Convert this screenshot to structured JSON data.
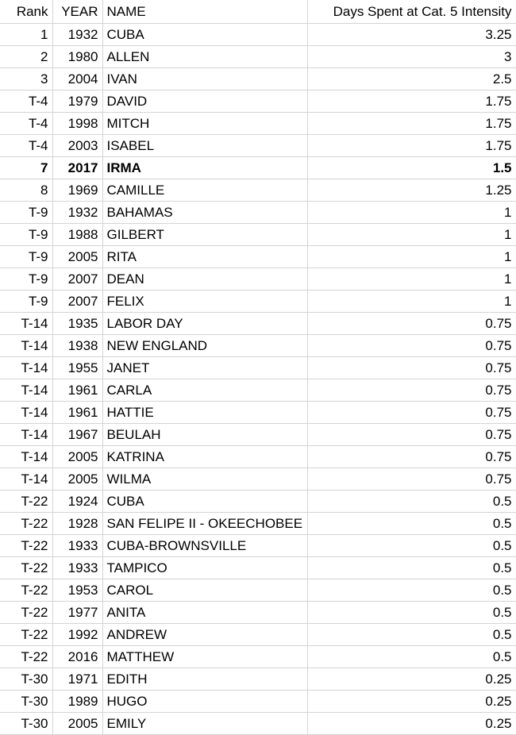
{
  "headers": {
    "rank": "Rank",
    "year": "YEAR",
    "name": "NAME",
    "days": "Days Spent at Cat. 5 Intensity"
  },
  "rows": [
    {
      "rank": "1",
      "year": "1932",
      "name": "CUBA",
      "days": "3.25"
    },
    {
      "rank": "2",
      "year": "1980",
      "name": "ALLEN",
      "days": "3"
    },
    {
      "rank": "3",
      "year": "2004",
      "name": "IVAN",
      "days": "2.5"
    },
    {
      "rank": "T-4",
      "year": "1979",
      "name": "DAVID",
      "days": "1.75"
    },
    {
      "rank": "T-4",
      "year": "1998",
      "name": "MITCH",
      "days": "1.75"
    },
    {
      "rank": "T-4",
      "year": "2003",
      "name": "ISABEL",
      "days": "1.75"
    },
    {
      "rank": "7",
      "year": "2017",
      "name": "IRMA",
      "days": "1.5",
      "bold": true
    },
    {
      "rank": "8",
      "year": "1969",
      "name": "CAMILLE",
      "days": "1.25"
    },
    {
      "rank": "T-9",
      "year": "1932",
      "name": "BAHAMAS",
      "days": "1"
    },
    {
      "rank": "T-9",
      "year": "1988",
      "name": "GILBERT",
      "days": "1"
    },
    {
      "rank": "T-9",
      "year": "2005",
      "name": "RITA",
      "days": "1"
    },
    {
      "rank": "T-9",
      "year": "2007",
      "name": "DEAN",
      "days": "1"
    },
    {
      "rank": "T-9",
      "year": "2007",
      "name": "FELIX",
      "days": "1"
    },
    {
      "rank": "T-14",
      "year": "1935",
      "name": "LABOR DAY",
      "days": "0.75"
    },
    {
      "rank": "T-14",
      "year": "1938",
      "name": "NEW ENGLAND",
      "days": "0.75"
    },
    {
      "rank": "T-14",
      "year": "1955",
      "name": "JANET",
      "days": "0.75"
    },
    {
      "rank": "T-14",
      "year": "1961",
      "name": "CARLA",
      "days": "0.75"
    },
    {
      "rank": "T-14",
      "year": "1961",
      "name": "HATTIE",
      "days": "0.75"
    },
    {
      "rank": "T-14",
      "year": "1967",
      "name": "BEULAH",
      "days": "0.75"
    },
    {
      "rank": "T-14",
      "year": "2005",
      "name": "KATRINA",
      "days": "0.75"
    },
    {
      "rank": "T-14",
      "year": "2005",
      "name": "WILMA",
      "days": "0.75"
    },
    {
      "rank": "T-22",
      "year": "1924",
      "name": "CUBA",
      "days": "0.5"
    },
    {
      "rank": "T-22",
      "year": "1928",
      "name": "SAN FELIPE II - OKEECHOBEE",
      "days": "0.5"
    },
    {
      "rank": "T-22",
      "year": "1933",
      "name": "CUBA-BROWNSVILLE",
      "days": "0.5"
    },
    {
      "rank": "T-22",
      "year": "1933",
      "name": "TAMPICO",
      "days": "0.5"
    },
    {
      "rank": "T-22",
      "year": "1953",
      "name": "CAROL",
      "days": "0.5"
    },
    {
      "rank": "T-22",
      "year": "1977",
      "name": "ANITA",
      "days": "0.5"
    },
    {
      "rank": "T-22",
      "year": "1992",
      "name": "ANDREW",
      "days": "0.5"
    },
    {
      "rank": "T-22",
      "year": "2016",
      "name": "MATTHEW",
      "days": "0.5"
    },
    {
      "rank": "T-30",
      "year": "1971",
      "name": "EDITH",
      "days": "0.25"
    },
    {
      "rank": "T-30",
      "year": "1989",
      "name": "HUGO",
      "days": "0.25"
    },
    {
      "rank": "T-30",
      "year": "2005",
      "name": "EMILY",
      "days": "0.25"
    }
  ]
}
